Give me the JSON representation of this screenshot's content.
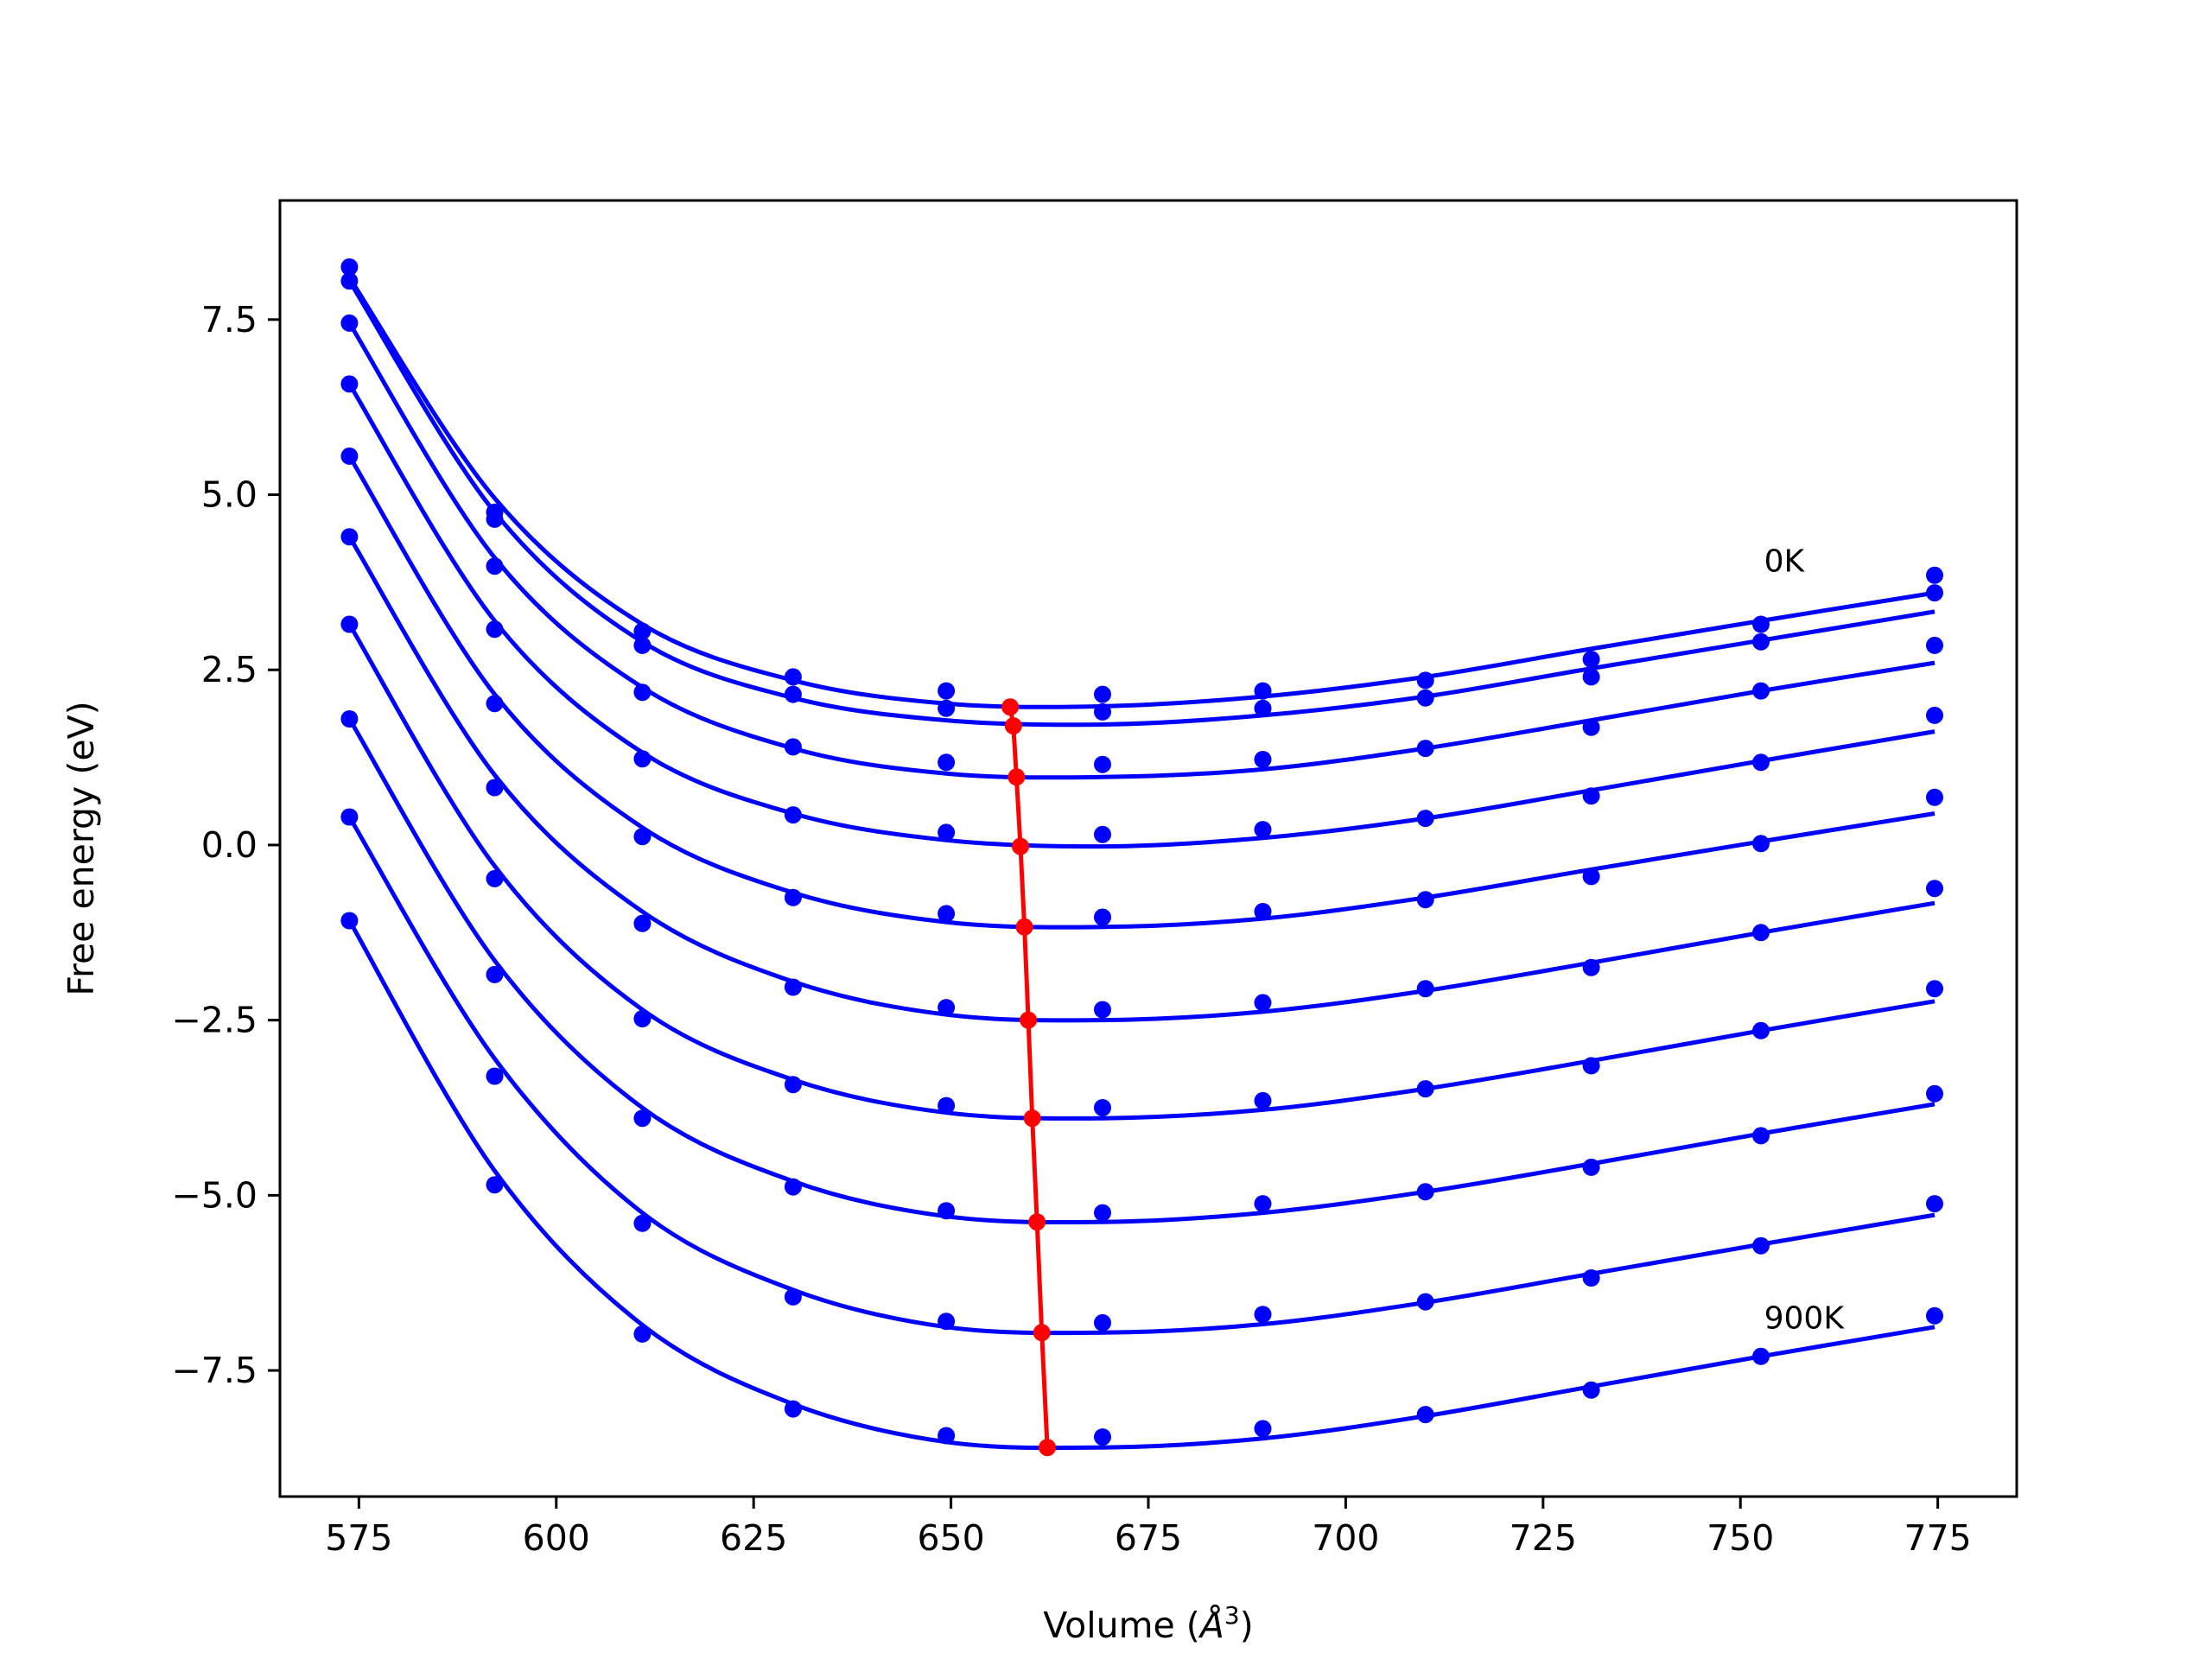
{
  "chart_data": {
    "type": "line",
    "xlabel": "Volume (",
    "xlabel_unit": "Å",
    "xlabel_exp": "3",
    "xlabel_close": ")",
    "ylabel": "Free energy (eV)",
    "xlim": [
      565,
      785
    ],
    "ylim": [
      -9.3,
      9.2
    ],
    "xticks": [
      575,
      600,
      625,
      650,
      675,
      700,
      725,
      750,
      775
    ],
    "yticks": [
      7.5,
      5.0,
      2.5,
      0.0,
      -2.5,
      -5.0,
      -7.5
    ],
    "ytick_labels": [
      "7.5",
      "5.0",
      "2.5",
      "0.0",
      "−2.5",
      "−5.0",
      "−7.5"
    ],
    "grid": false,
    "colors": {
      "curves": "#0000ff",
      "minima": "#ff0000",
      "axes": "#000000"
    },
    "annotations": [
      {
        "text": "0K",
        "x": 753,
        "y": 3.9
      },
      {
        "text": "900K",
        "x": 753,
        "y": -6.9
      }
    ],
    "volumes": [
      573.8,
      592.2,
      610.9,
      630.0,
      649.4,
      669.2,
      689.5,
      710.1,
      731.1,
      752.6,
      774.6
    ],
    "series": [
      {
        "points": [
          8.25,
          4.75,
          3.05,
          2.4,
          2.2,
          2.15,
          2.2,
          2.35,
          2.65,
          3.15,
          3.85
        ],
        "fit": [
          8.1,
          4.95,
          3.15,
          2.35,
          2.02,
          1.98,
          2.12,
          2.4,
          2.8,
          3.2,
          3.6
        ]
      },
      {
        "points": [
          8.05,
          4.65,
          2.85,
          2.15,
          1.95,
          1.9,
          1.95,
          2.1,
          2.4,
          2.9,
          3.6
        ],
        "fit": [
          8.05,
          4.75,
          2.9,
          2.1,
          1.78,
          1.72,
          1.85,
          2.12,
          2.52,
          2.92,
          3.33
        ]
      },
      {
        "points": [
          7.45,
          3.98,
          2.18,
          1.4,
          1.18,
          1.15,
          1.22,
          1.38,
          1.68,
          2.2,
          2.85
        ],
        "fit": [
          7.45,
          4.1,
          2.25,
          1.38,
          1.02,
          0.97,
          1.08,
          1.38,
          1.78,
          2.2,
          2.6
        ]
      },
      {
        "points": [
          6.58,
          3.08,
          1.23,
          0.43,
          0.18,
          0.15,
          0.22,
          0.38,
          0.7,
          1.18,
          1.85
        ],
        "fit": [
          6.58,
          3.2,
          1.32,
          0.45,
          0.07,
          -0.02,
          0.1,
          0.38,
          0.78,
          1.2,
          1.62
        ]
      },
      {
        "points": [
          5.55,
          2.02,
          0.12,
          -0.75,
          -0.98,
          -1.03,
          -0.95,
          -0.78,
          -0.45,
          0.02,
          0.68
        ],
        "fit": [
          5.55,
          2.15,
          0.25,
          -0.68,
          -1.1,
          -1.17,
          -1.05,
          -0.75,
          -0.35,
          0.05,
          0.45
        ]
      },
      {
        "points": [
          4.4,
          0.82,
          -1.12,
          -2.03,
          -2.32,
          -2.35,
          -2.25,
          -2.05,
          -1.75,
          -1.25,
          -0.62
        ],
        "fit": [
          4.4,
          1.0,
          -0.95,
          -1.95,
          -2.42,
          -2.5,
          -2.38,
          -2.08,
          -1.68,
          -1.25,
          -0.83
        ]
      },
      {
        "points": [
          3.15,
          -0.48,
          -2.48,
          -3.42,
          -3.72,
          -3.75,
          -3.65,
          -3.48,
          -3.15,
          -2.65,
          -2.05
        ],
        "fit": [
          3.15,
          -0.3,
          -2.35,
          -3.35,
          -3.82,
          -3.9,
          -3.78,
          -3.48,
          -3.08,
          -2.65,
          -2.23
        ]
      },
      {
        "points": [
          1.8,
          -1.85,
          -3.9,
          -4.88,
          -5.22,
          -5.25,
          -5.12,
          -4.95,
          -4.6,
          -4.15,
          -3.55
        ],
        "fit": [
          1.8,
          -1.65,
          -3.75,
          -4.8,
          -5.3,
          -5.38,
          -5.25,
          -4.95,
          -4.55,
          -4.12,
          -3.7
        ]
      },
      {
        "points": [
          0.4,
          -3.3,
          -5.4,
          -6.45,
          -6.8,
          -6.82,
          -6.7,
          -6.52,
          -6.18,
          -5.72,
          -5.12
        ],
        "fit": [
          0.4,
          -3.05,
          -5.25,
          -6.35,
          -6.88,
          -6.96,
          -6.84,
          -6.53,
          -6.12,
          -5.7,
          -5.28
        ]
      },
      {
        "points": [
          -1.08,
          -4.85,
          -6.98,
          -8.05,
          -8.43,
          -8.45,
          -8.33,
          -8.13,
          -7.78,
          -7.3,
          -6.72
        ],
        "fit": [
          -1.08,
          -4.65,
          -6.85,
          -7.98,
          -8.52,
          -8.6,
          -8.47,
          -8.15,
          -7.73,
          -7.3,
          -6.88
        ]
      }
    ],
    "minima": {
      "x": [
        657.5,
        657.9,
        658.3,
        658.8,
        659.3,
        659.8,
        660.3,
        660.9,
        661.5,
        662.2
      ],
      "y": [
        1.97,
        1.7,
        0.97,
        -0.02,
        -1.17,
        -2.5,
        -3.9,
        -5.38,
        -6.96,
        -8.6
      ]
    }
  }
}
